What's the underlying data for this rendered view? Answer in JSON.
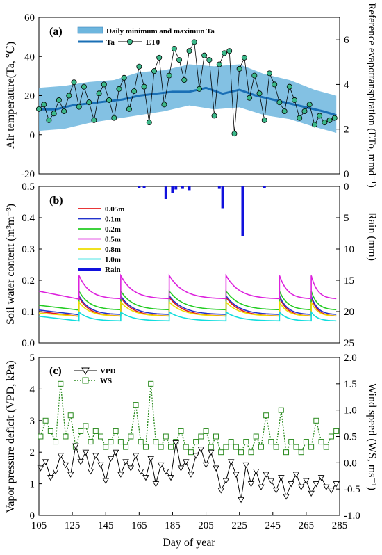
{
  "chart_data": [
    {
      "panel_label": "(a)",
      "type": "line",
      "ylabel": "Air temperature(Ta, ℃)",
      "ylabel_right": "Reference evapotranspiration (ETo, mmd⁻¹)",
      "ylim": [
        -20,
        60
      ],
      "ylim_right": [
        0,
        7
      ],
      "yticks": [
        "-20",
        "0",
        "20",
        "40",
        "60"
      ],
      "yticks_right": [
        "0",
        "2",
        "4",
        "6"
      ],
      "legend": [
        {
          "label": "Daily minimum and maximun Ta",
          "kind": "band",
          "color": "#6db6de"
        },
        {
          "label": "Ta",
          "kind": "line",
          "color": "#1a6fb5"
        },
        {
          "label": "ET0",
          "kind": "point",
          "color": "#3cb98a"
        }
      ],
      "series": [
        {
          "name": "Ta",
          "x": [
            105,
            115,
            125,
            135,
            145,
            155,
            165,
            175,
            185,
            195,
            205,
            215,
            225,
            235,
            245,
            255,
            265,
            275,
            283
          ],
          "values": [
            13,
            13,
            15,
            16,
            17,
            18,
            20,
            21,
            22,
            22,
            24,
            21,
            23,
            20,
            18,
            16,
            14,
            12,
            10
          ]
        },
        {
          "name": "Daily minimum and maximun Ta",
          "x": [
            105,
            120,
            135,
            150,
            165,
            180,
            195,
            210,
            225,
            240,
            255,
            270,
            283
          ],
          "lower": [
            2,
            3,
            6,
            8,
            10,
            12,
            15,
            13,
            14,
            10,
            8,
            4,
            1
          ],
          "upper": [
            24,
            25,
            27,
            28,
            32,
            33,
            36,
            35,
            36,
            31,
            28,
            23,
            20
          ]
        },
        {
          "name": "ET0",
          "x": [
            105,
            108,
            111,
            114,
            117,
            120,
            123,
            126,
            129,
            132,
            135,
            138,
            141,
            144,
            147,
            150,
            153,
            156,
            159,
            162,
            165,
            168,
            171,
            174,
            177,
            180,
            183,
            186,
            189,
            192,
            195,
            198,
            201,
            204,
            207,
            210,
            213,
            216,
            219,
            222,
            225,
            228,
            231,
            234,
            237,
            240,
            243,
            246,
            249,
            252,
            255,
            258,
            261,
            264,
            267,
            270,
            273,
            276,
            279,
            282
          ],
          "values": [
            2.9,
            3.1,
            2.4,
            2.7,
            3.3,
            2.8,
            3.5,
            4.1,
            3.0,
            3.9,
            3.2,
            2.4,
            3.6,
            4.0,
            3.3,
            2.5,
            3.8,
            4.3,
            2.9,
            3.7,
            4.8,
            3.9,
            2.3,
            4.6,
            5.2,
            3.1,
            4.4,
            5.6,
            5.1,
            4.2,
            5.5,
            5.9,
            3.8,
            5.3,
            5.1,
            2.6,
            4.9,
            5.4,
            5.5,
            1.8,
            4.7,
            5.2,
            3.4,
            4.4,
            3.6,
            2.4,
            4.5,
            4.0,
            3.2,
            2.8,
            3.9,
            3.3,
            2.5,
            2.8,
            3.1,
            2.2,
            2.6,
            2.3,
            2.4,
            2.5
          ]
        }
      ]
    },
    {
      "panel_label": "(b)",
      "type": "line",
      "ylabel": "Soil water content (m³m⁻³)",
      "ylabel_right": "Rain (mm)",
      "ylim": [
        0,
        0.5
      ],
      "ylim_right": [
        25,
        0
      ],
      "yticks": [
        "0.0",
        "0.1",
        "0.2",
        "0.3",
        "0.4",
        "0.5"
      ],
      "yticks_right": [
        "0",
        "5",
        "10",
        "15",
        "20",
        "25"
      ],
      "legend": [
        {
          "label": "0.05m",
          "color": "#e41a1c"
        },
        {
          "label": "0.1m",
          "color": "#2233cc"
        },
        {
          "label": "0.2m",
          "color": "#22cc22"
        },
        {
          "label": "0.5m",
          "color": "#dd22dd"
        },
        {
          "label": "0.8m",
          "color": "#eedd00"
        },
        {
          "label": "1.0m",
          "color": "#11dddd"
        },
        {
          "label": "Rain",
          "color": "#1111dd"
        }
      ],
      "irrigation_days": [
        129,
        154,
        183,
        217,
        249,
        268
      ],
      "series": [
        {
          "name": "0.05m",
          "start": 0.1,
          "end": 0.085,
          "peak": 0.145
        },
        {
          "name": "0.1m",
          "start": 0.105,
          "end": 0.09,
          "peak": 0.15
        },
        {
          "name": "0.2m",
          "start": 0.12,
          "end": 0.105,
          "peak": 0.165
        },
        {
          "name": "0.5m",
          "start": 0.165,
          "end": 0.14,
          "peak": 0.215
        },
        {
          "name": "0.8m",
          "start": 0.095,
          "end": 0.085,
          "peak": 0.13
        },
        {
          "name": "1.0m",
          "start": 0.085,
          "end": 0.07,
          "peak": 0.098
        }
      ],
      "rain": [
        {
          "x": 165,
          "mm": 0.3
        },
        {
          "x": 168,
          "mm": 0.3
        },
        {
          "x": 181,
          "mm": 2.0
        },
        {
          "x": 185,
          "mm": 1.0
        },
        {
          "x": 187,
          "mm": 0.5
        },
        {
          "x": 191,
          "mm": 0.4
        },
        {
          "x": 195,
          "mm": 0.6
        },
        {
          "x": 213,
          "mm": 0.4
        },
        {
          "x": 215,
          "mm": 3.5
        },
        {
          "x": 227,
          "mm": 8.0
        },
        {
          "x": 240,
          "mm": 0.3
        }
      ]
    },
    {
      "panel_label": "(c)",
      "type": "line",
      "ylabel": "Vapor pressure deficit (VPD, kPa)",
      "ylabel_right": "Wind speed (WS, ms⁻¹)",
      "xlabel": "Day of year",
      "ylim": [
        0,
        5
      ],
      "ylim_right": [
        -1.0,
        2.0
      ],
      "xlim": [
        105,
        285
      ],
      "yticks": [
        "0",
        "1",
        "2",
        "3",
        "4",
        "5"
      ],
      "yticks_right": [
        "-1.0",
        "-0.5",
        "0.0",
        "0.5",
        "1.0",
        "1.5",
        "2.0"
      ],
      "xticks": [
        "105",
        "125",
        "145",
        "165",
        "185",
        "205",
        "225",
        "245",
        "265",
        "285"
      ],
      "legend": [
        {
          "label": "VPD",
          "marker": "triangle-down",
          "color": "#000000"
        },
        {
          "label": "WS",
          "marker": "square",
          "color": "#2a8a1e"
        }
      ],
      "series": [
        {
          "name": "VPD",
          "x": [
            106,
            109,
            112,
            115,
            118,
            121,
            124,
            127,
            130,
            133,
            136,
            139,
            142,
            145,
            148,
            151,
            154,
            157,
            160,
            163,
            166,
            169,
            172,
            175,
            178,
            181,
            184,
            187,
            190,
            193,
            196,
            199,
            202,
            205,
            208,
            211,
            214,
            217,
            220,
            223,
            226,
            229,
            232,
            235,
            238,
            241,
            244,
            247,
            250,
            253,
            256,
            259,
            262,
            265,
            268,
            271,
            274,
            277,
            280,
            283
          ],
          "values": [
            1.5,
            1.7,
            1.2,
            1.4,
            1.9,
            1.6,
            1.3,
            2.2,
            1.7,
            2.0,
            1.4,
            1.9,
            1.6,
            1.1,
            1.8,
            2.0,
            1.3,
            1.7,
            1.5,
            1.9,
            1.4,
            1.2,
            1.8,
            1.0,
            1.6,
            1.4,
            1.2,
            2.3,
            1.5,
            1.7,
            1.3,
            1.9,
            2.1,
            1.6,
            2.0,
            1.5,
            0.8,
            1.1,
            1.7,
            1.3,
            0.5,
            1.6,
            1.0,
            1.4,
            0.9,
            1.3,
            1.1,
            0.8,
            1.2,
            0.6,
            1.0,
            1.3,
            0.9,
            1.1,
            0.7,
            1.0,
            1.2,
            0.9,
            0.8,
            1.0
          ]
        },
        {
          "name": "WS",
          "x": [
            106,
            109,
            112,
            115,
            118,
            121,
            124,
            127,
            130,
            133,
            136,
            139,
            142,
            145,
            148,
            151,
            154,
            157,
            160,
            163,
            166,
            169,
            172,
            175,
            178,
            181,
            184,
            187,
            190,
            193,
            196,
            199,
            202,
            205,
            208,
            211,
            214,
            217,
            220,
            223,
            226,
            229,
            232,
            235,
            238,
            241,
            244,
            247,
            250,
            253,
            256,
            259,
            262,
            265,
            268,
            271,
            274,
            277,
            280,
            283
          ],
          "values": [
            0.5,
            0.8,
            0.6,
            0.4,
            1.5,
            0.5,
            0.9,
            0.3,
            0.6,
            0.7,
            0.4,
            0.6,
            0.5,
            0.3,
            0.4,
            0.6,
            0.4,
            0.3,
            0.5,
            1.1,
            0.4,
            0.3,
            1.5,
            0.4,
            0.3,
            0.5,
            0.3,
            0.4,
            0.6,
            0.3,
            0.2,
            0.4,
            0.5,
            0.6,
            0.3,
            0.5,
            0.2,
            0.3,
            0.4,
            0.3,
            0.2,
            0.4,
            0.2,
            0.5,
            0.3,
            0.9,
            0.4,
            0.3,
            1.0,
            0.2,
            0.4,
            0.3,
            0.2,
            0.4,
            0.3,
            0.8,
            0.4,
            0.3,
            0.5,
            0.6
          ]
        }
      ]
    }
  ]
}
